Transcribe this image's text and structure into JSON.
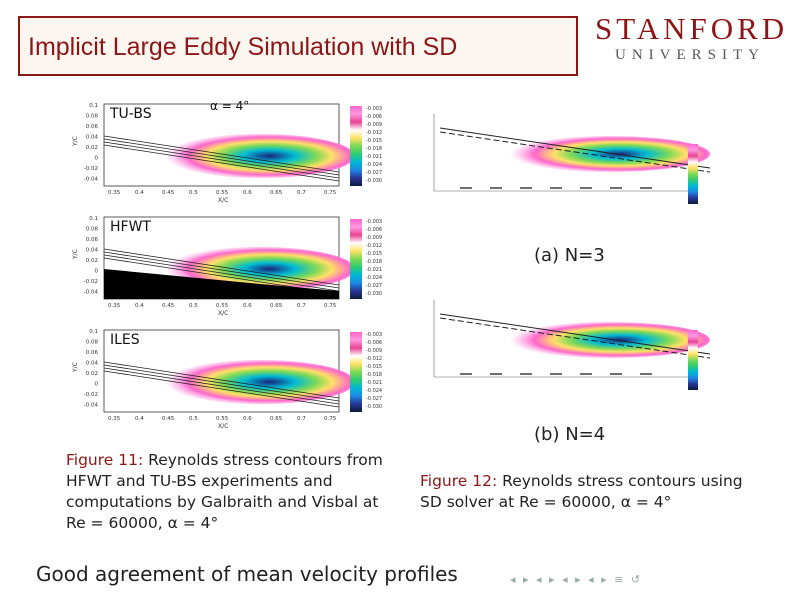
{
  "header": {
    "title": "Implicit Large Eddy Simulation with SD",
    "logo_top": "STANFORD",
    "logo_bottom": "UNIVERSITY"
  },
  "left_panels": [
    {
      "label": "TU-BS",
      "angle": "α = 4°",
      "yticks": [
        "0.1",
        "0.08",
        "0.06",
        "0.04",
        "0.02",
        "0",
        "-0.02",
        "-0.04"
      ],
      "xticks": [
        "0.35",
        "0.4",
        "0.45",
        "0.5",
        "0.55",
        "0.6",
        "0.65",
        "0.7",
        "0.75"
      ],
      "ylabel": "Y/C",
      "xlabel": "X/C",
      "legend": [
        "-0.003",
        "-0.006",
        "-0.009",
        "-0.012",
        "-0.015",
        "-0.018",
        "-0.021",
        "-0.024",
        "-0.027",
        "-0.030"
      ]
    },
    {
      "label": "HFWT",
      "yticks": [
        "0.1",
        "0.08",
        "0.06",
        "0.04",
        "0.02",
        "0",
        "-0.02",
        "-0.04"
      ],
      "xticks": [
        "0.35",
        "0.4",
        "0.45",
        "0.5",
        "0.55",
        "0.6",
        "0.65",
        "0.7",
        "0.75"
      ],
      "ylabel": "Y/C",
      "xlabel": "X/C",
      "legend": [
        "-0.003",
        "-0.006",
        "-0.009",
        "-0.012",
        "-0.015",
        "-0.018",
        "-0.021",
        "-0.024",
        "-0.027",
        "-0.030"
      ]
    },
    {
      "label": "ILES",
      "yticks": [
        "0.1",
        "0.08",
        "0.06",
        "0.04",
        "0.02",
        "0",
        "-0.02",
        "-0.04"
      ],
      "xticks": [
        "0.35",
        "0.4",
        "0.45",
        "0.5",
        "0.55",
        "0.6",
        "0.65",
        "0.7",
        "0.75"
      ],
      "ylabel": "Y/C",
      "xlabel": "X/C",
      "legend": [
        "-0.003",
        "-0.006",
        "-0.009",
        "-0.012",
        "-0.015",
        "-0.018",
        "-0.021",
        "-0.024",
        "-0.027",
        "-0.030"
      ]
    }
  ],
  "right_panels": [
    {
      "sublabel": "(a) N=3"
    },
    {
      "sublabel": "(b) N=4"
    }
  ],
  "caption11": {
    "fig": "Figure 11:",
    "line1": "Reynolds stress contours from",
    "line2": "HFWT and TU-BS experiments and",
    "line3": "computations by Galbraith and Visbal at",
    "line4": "Re = 60000, α = 4°"
  },
  "caption12": {
    "fig": "Figure 12:",
    "line1": "Reynolds stress contours using",
    "line2": "SD solver at Re = 60000, α = 4°"
  },
  "footer": {
    "text": "Good agreement of mean velocity profiles",
    "nav": "◂ ▸ ◂ ▸ ◂ ▸ ◂ ▸  ≡  ↺"
  },
  "colors": {
    "accent": "#8c1515"
  }
}
